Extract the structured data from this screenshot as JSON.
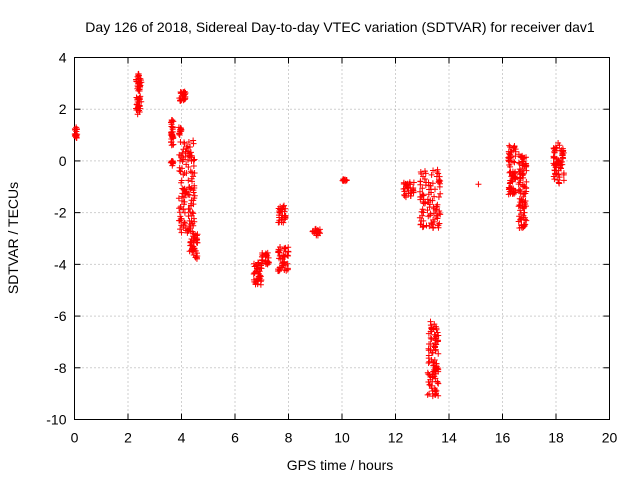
{
  "chart_data": {
    "type": "scatter",
    "title": "Day 126 of 2018, Sidereal Day-to-day VTEC variation (SDTVAR) for receiver dav1",
    "xlabel": "GPS time / hours",
    "ylabel": "SDTVAR / TECUs",
    "xlim": [
      0,
      20
    ],
    "ylim": [
      -10,
      4
    ],
    "xticks": [
      0,
      2,
      4,
      6,
      8,
      10,
      12,
      14,
      16,
      18,
      20
    ],
    "yticks": [
      -10,
      -8,
      -6,
      -4,
      -2,
      0,
      2,
      4
    ],
    "grid": true,
    "marker": "+",
    "color": "#ff0000",
    "clusters": [
      {
        "x_min": 0.0,
        "x_max": 0.1,
        "y_min": 0.8,
        "y_max": 1.3
      },
      {
        "x_min": 2.3,
        "x_max": 2.5,
        "y_min": 2.7,
        "y_max": 3.4
      },
      {
        "x_min": 2.3,
        "x_max": 2.5,
        "y_min": 1.8,
        "y_max": 2.5
      },
      {
        "x_min": 3.6,
        "x_max": 3.7,
        "y_min": 0.6,
        "y_max": 1.6
      },
      {
        "x_min": 3.6,
        "x_max": 3.7,
        "y_min": -0.2,
        "y_max": 0.0
      },
      {
        "x_min": 3.9,
        "x_max": 4.2,
        "y_min": 2.3,
        "y_max": 2.7
      },
      {
        "x_min": 3.9,
        "x_max": 4.0,
        "y_min": 1.0,
        "y_max": 1.3
      },
      {
        "x_min": 3.9,
        "x_max": 4.5,
        "y_min": -2.8,
        "y_max": 0.8
      },
      {
        "x_min": 4.3,
        "x_max": 4.6,
        "y_min": -3.8,
        "y_max": -2.8
      },
      {
        "x_min": 6.7,
        "x_max": 7.0,
        "y_min": -4.8,
        "y_max": -3.9
      },
      {
        "x_min": 7.0,
        "x_max": 7.3,
        "y_min": -4.0,
        "y_max": -3.5
      },
      {
        "x_min": 7.6,
        "x_max": 7.9,
        "y_min": -2.4,
        "y_max": -1.7
      },
      {
        "x_min": 7.6,
        "x_max": 8.0,
        "y_min": -4.3,
        "y_max": -3.3
      },
      {
        "x_min": 8.9,
        "x_max": 9.2,
        "y_min": -2.9,
        "y_max": -2.6
      },
      {
        "x_min": 10.0,
        "x_max": 10.2,
        "y_min": -0.8,
        "y_max": -0.7
      },
      {
        "x_min": 12.3,
        "x_max": 12.7,
        "y_min": -1.4,
        "y_max": -0.8
      },
      {
        "x_min": 12.9,
        "x_max": 13.7,
        "y_min": -2.6,
        "y_max": -0.3
      },
      {
        "x_min": 13.2,
        "x_max": 13.6,
        "y_min": -9.1,
        "y_max": -6.2
      },
      {
        "x_min": 15.1,
        "x_max": 15.1,
        "y_min": -0.9,
        "y_max": -0.9
      },
      {
        "x_min": 16.2,
        "x_max": 16.5,
        "y_min": -1.3,
        "y_max": 0.6
      },
      {
        "x_min": 16.6,
        "x_max": 16.9,
        "y_min": -2.6,
        "y_max": 0.3
      },
      {
        "x_min": 17.9,
        "x_max": 18.3,
        "y_min": -0.9,
        "y_max": 0.7
      }
    ]
  }
}
